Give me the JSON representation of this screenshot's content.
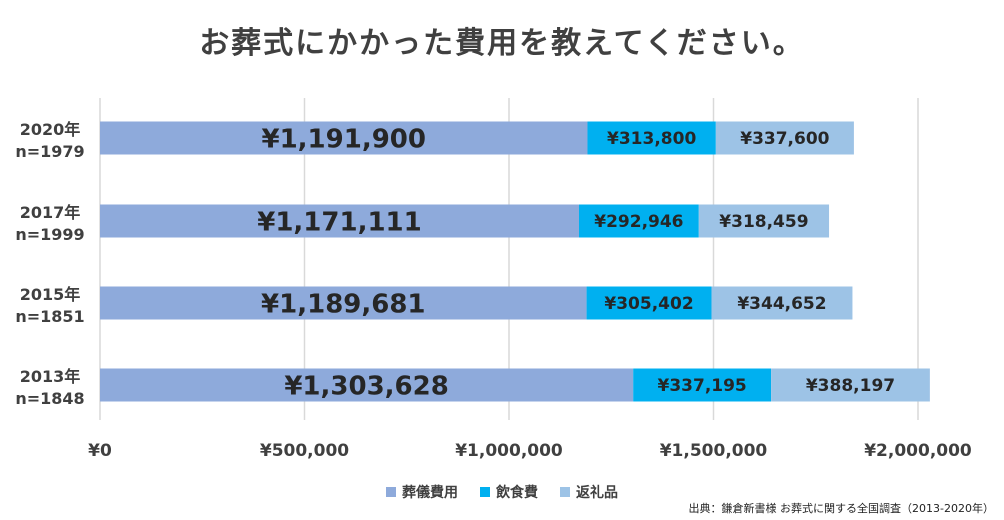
{
  "chart_data": {
    "type": "bar",
    "orientation": "horizontal",
    "stacked": true,
    "title": "お葬式にかかった費用を教えてください。",
    "categories": [
      "2020年\nn=1979",
      "2017年\nn=1999",
      "2015年\nn=1851",
      "2013年\nn=1848"
    ],
    "series": [
      {
        "name": "葬儀費用",
        "color": "#8eaadb",
        "values": [
          1191900,
          1171111,
          1189681,
          1303628
        ],
        "labels": [
          "¥1,191,900",
          "¥1,171,111",
          "¥1,189,681",
          "¥1,303,628"
        ]
      },
      {
        "name": "飲食費",
        "color": "#00b0f0",
        "values": [
          313800,
          292946,
          305402,
          337195
        ],
        "labels": [
          "¥313,800",
          "¥292,946",
          "¥305,402",
          "¥337,195"
        ]
      },
      {
        "name": "返礼品",
        "color": "#9dc3e6",
        "values": [
          337600,
          318459,
          344652,
          388197
        ],
        "labels": [
          "¥337,600",
          "¥318,459",
          "¥344,652",
          "¥388,197"
        ]
      }
    ],
    "x_ticks": [
      "¥0",
      "¥500,000",
      "¥1,000,000",
      "¥1,500,000",
      "¥2,000,000"
    ],
    "xlim": [
      0,
      2000000
    ],
    "grid": true,
    "legend_position": "bottom"
  },
  "source": "出典：鎌倉新書様 お葬式に関する全国調査（2013-2020年）"
}
